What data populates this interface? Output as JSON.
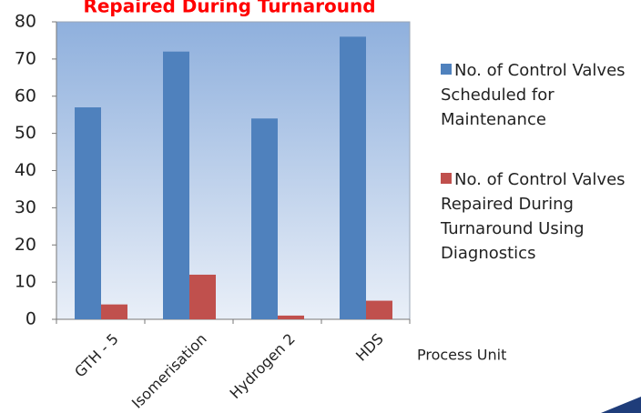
{
  "chart_data": {
    "type": "bar",
    "title": "Repaired During Turnaround",
    "categories": [
      "GTH - 5",
      "Isomerisation",
      "Hydrogen 2",
      "HDS"
    ],
    "series": [
      {
        "name": "No. of Control Valves Scheduled for Maintenance",
        "color": "#4f81bd",
        "values": [
          57,
          72,
          54,
          76
        ]
      },
      {
        "name": "No. of Control Valves Repaired During Turnaround Using Diagnostics",
        "color": "#c0504d",
        "values": [
          4,
          12,
          1,
          5
        ]
      }
    ],
    "x_label": "Process Unit",
    "ylim": [
      0,
      80
    ],
    "yticks": [
      0,
      10,
      20,
      30,
      40,
      50,
      60,
      70,
      80
    ]
  }
}
